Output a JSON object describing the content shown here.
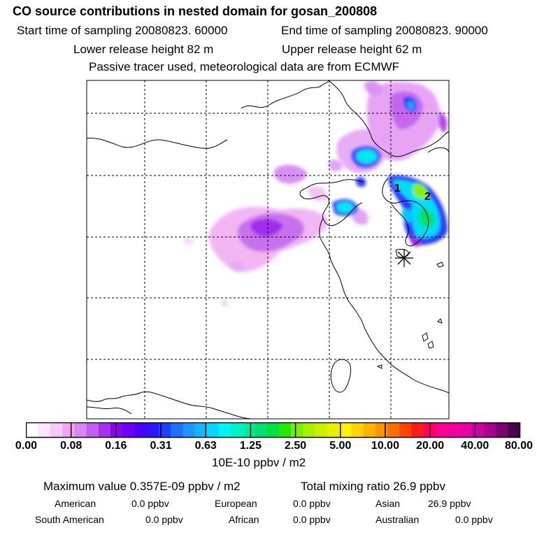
{
  "header": {
    "title": "CO  source contributions in nested domain for gosan_200808",
    "start_time": "Start time of sampling 20080823. 60000",
    "end_time": "End time of sampling 20080823. 90000",
    "lower_release": "Lower release height   82 m",
    "upper_release": "Upper release height   62 m",
    "tracer_note": "Passive tracer used, meteorological data are from ECMWF"
  },
  "map": {
    "source_marks": [
      "1",
      "2"
    ],
    "receptor_marker": "asterisk-marker",
    "colors": {
      "coast": "#000000",
      "grid": "#000000"
    }
  },
  "colorbar": {
    "tick_labels": [
      "0.00",
      "0.08",
      "0.16",
      "0.31",
      "0.63",
      "1.25",
      "2.50",
      "5.00",
      "10.00",
      "20.00",
      "40.00",
      "80.00"
    ],
    "unit": "10E-10 ppbv / m2",
    "colors": [
      "#ffffff",
      "#fde6fd",
      "#f8c8f8",
      "#f0a6f3",
      "#d987f2",
      "#c35ef0",
      "#a92ff0",
      "#8d00ef",
      "#6a00f5",
      "#4a00f8",
      "#2d14ff",
      "#1e40ff",
      "#1e70ff",
      "#1e95ff",
      "#12b8ff",
      "#00d8ff",
      "#00f5f0",
      "#00f0c8",
      "#00eb9c",
      "#00e070",
      "#00e040",
      "#28e800",
      "#7af000",
      "#a6f000",
      "#c8f000",
      "#e6f000",
      "#fff000",
      "#ffd400",
      "#ffb400",
      "#ff9400",
      "#ff7000",
      "#ff4400",
      "#ff1a1a",
      "#ff0060",
      "#ff0094",
      "#f5009e",
      "#e300a8",
      "#cc00a4",
      "#a8008c",
      "#7a0070",
      "#4a004a"
    ]
  },
  "stats": {
    "max_value": "Maximum value  0.357E-09 ppbv / m2",
    "total_mixing": "Total mixing ratio       26.9 ppbv",
    "regions": [
      {
        "label": "American",
        "value": "0.0 ppbv"
      },
      {
        "label": "European",
        "value": "0.0 ppbv"
      },
      {
        "label": "Asian",
        "value": "26.9 ppbv"
      },
      {
        "label": "South American",
        "value": "0.0 ppbv"
      },
      {
        "label": "African",
        "value": "0.0 ppbv"
      },
      {
        "label": "Australian",
        "value": "0.0 ppbv"
      }
    ]
  }
}
